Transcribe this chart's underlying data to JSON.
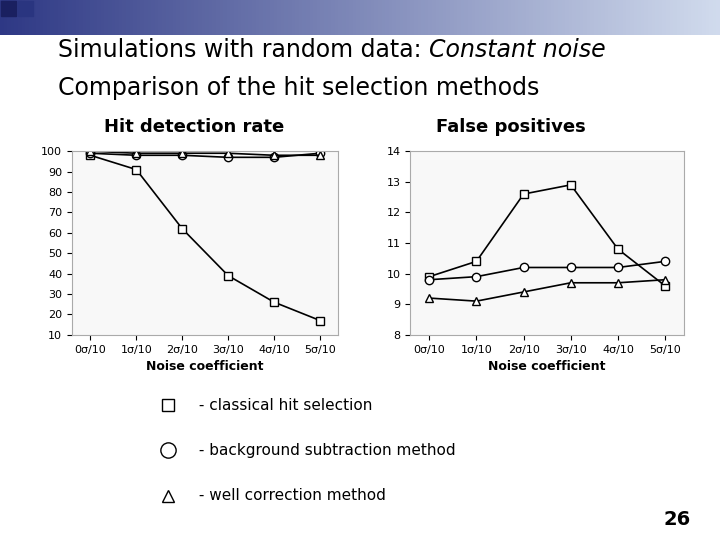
{
  "title_line1": "Simulations with random data: ",
  "title_italic": "Constant noise",
  "title_line2": "Comparison of the hit selection methods",
  "subtitle_left": "Hit detection rate",
  "subtitle_right": "False positives",
  "x_labels": [
    "0σ/10",
    "1σ/10",
    "2σ/10",
    "3σ/10",
    "4σ/10",
    "5σ/10"
  ],
  "x_values": [
    0,
    1,
    2,
    3,
    4,
    5
  ],
  "xlabel": "Noise coefficient",
  "left_ylim": [
    10,
    100
  ],
  "left_yticks": [
    10,
    20,
    30,
    40,
    50,
    60,
    70,
    80,
    90,
    100
  ],
  "right_ylim": [
    8,
    14
  ],
  "right_yticks": [
    8,
    9,
    10,
    11,
    12,
    13,
    14
  ],
  "hit_square": [
    98,
    91,
    62,
    39,
    26,
    17
  ],
  "hit_circle": [
    99,
    98,
    98,
    97,
    97,
    99
  ],
  "hit_triangle": [
    100,
    99,
    99,
    99,
    98,
    98
  ],
  "fp_square": [
    9.9,
    10.4,
    12.6,
    12.9,
    10.8,
    9.6
  ],
  "fp_circle": [
    9.8,
    9.9,
    10.2,
    10.2,
    10.2,
    10.4
  ],
  "fp_triangle": [
    9.2,
    9.1,
    9.4,
    9.7,
    9.7,
    9.8
  ],
  "line_color": "#000000",
  "bg_color": "#ffffff",
  "legend_square": " - classical hit selection",
  "legend_circle": " - background subtraction method",
  "legend_triangle": " - well correction method",
  "page_number": "26",
  "title_fontsize": 17,
  "subtitle_fontsize": 13,
  "axis_fontsize": 8,
  "xlabel_fontsize": 9,
  "legend_fontsize": 11
}
